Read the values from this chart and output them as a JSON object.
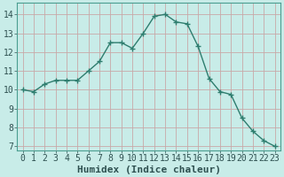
{
  "x": [
    0,
    1,
    2,
    3,
    4,
    5,
    6,
    7,
    8,
    9,
    10,
    11,
    12,
    13,
    14,
    15,
    16,
    17,
    18,
    19,
    20,
    21,
    22,
    23
  ],
  "y": [
    10.0,
    9.9,
    10.3,
    10.5,
    10.5,
    10.5,
    11.0,
    11.5,
    12.5,
    12.5,
    12.2,
    13.0,
    13.9,
    14.0,
    13.6,
    13.5,
    12.3,
    10.6,
    9.9,
    9.75,
    8.5,
    7.8,
    7.3,
    7.0
  ],
  "line_color": "#2e7d6e",
  "marker": "+",
  "marker_size": 4,
  "bg_color": "#c8ece8",
  "grid_color_major": "#c8a8a8",
  "grid_color_minor": "#b8dcd8",
  "xlabel": "Humidex (Indice chaleur)",
  "xlabel_fontsize": 8,
  "xlim": [
    -0.5,
    23.5
  ],
  "ylim": [
    6.8,
    14.6
  ],
  "yticks": [
    7,
    8,
    9,
    10,
    11,
    12,
    13,
    14
  ],
  "xticks": [
    0,
    1,
    2,
    3,
    4,
    5,
    6,
    7,
    8,
    9,
    10,
    11,
    12,
    13,
    14,
    15,
    16,
    17,
    18,
    19,
    20,
    21,
    22,
    23
  ],
  "tick_fontsize": 7,
  "line_width": 1.0
}
